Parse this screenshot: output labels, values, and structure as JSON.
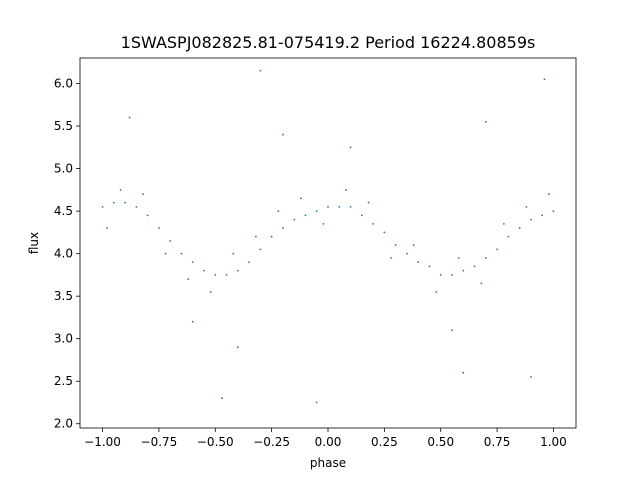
{
  "chart_data": {
    "type": "scatter",
    "title": "1SWASPJ082825.81-075419.2 Period 16224.80859s",
    "xlabel": "phase",
    "ylabel": "flux",
    "xlim": [
      -1.1,
      1.1
    ],
    "ylim": [
      1.95,
      6.3
    ],
    "xticks": [
      -1.0,
      -0.75,
      -0.5,
      -0.25,
      0.0,
      0.25,
      0.5,
      0.75,
      1.0
    ],
    "xtick_labels": [
      "−1.00",
      "−0.75",
      "−0.50",
      "−0.25",
      "0.00",
      "0.25",
      "0.50",
      "0.75",
      "1.00"
    ],
    "yticks": [
      2.0,
      2.5,
      3.0,
      3.5,
      4.0,
      4.5,
      5.0,
      5.5,
      6.0
    ],
    "ytick_labels": [
      "2.0",
      "2.5",
      "3.0",
      "3.5",
      "4.0",
      "4.5",
      "5.0",
      "5.5",
      "6.0"
    ],
    "grid": false,
    "marker_color": "#1f77b4",
    "series": [
      {
        "points": [
          [
            -1.0,
            4.55
          ],
          [
            -0.95,
            4.6
          ],
          [
            -0.9,
            4.6
          ],
          [
            -0.85,
            4.55
          ],
          [
            -0.8,
            4.45
          ],
          [
            -0.75,
            4.3
          ],
          [
            -0.7,
            4.15
          ],
          [
            -0.65,
            4.0
          ],
          [
            -0.6,
            3.9
          ],
          [
            -0.55,
            3.8
          ],
          [
            -0.5,
            3.75
          ],
          [
            -0.45,
            3.75
          ],
          [
            -0.4,
            3.8
          ],
          [
            -0.35,
            3.9
          ],
          [
            -0.3,
            4.05
          ],
          [
            -0.25,
            4.2
          ],
          [
            -0.2,
            4.3
          ],
          [
            -0.15,
            4.4
          ],
          [
            -0.1,
            4.45
          ],
          [
            -0.05,
            4.5
          ],
          [
            0.0,
            4.55
          ],
          [
            0.05,
            4.55
          ],
          [
            0.1,
            4.55
          ],
          [
            0.15,
            4.45
          ],
          [
            0.2,
            4.35
          ],
          [
            0.25,
            4.25
          ],
          [
            0.3,
            4.1
          ],
          [
            0.35,
            4.0
          ],
          [
            0.4,
            3.9
          ],
          [
            0.45,
            3.85
          ],
          [
            0.5,
            3.75
          ],
          [
            0.55,
            3.75
          ],
          [
            0.6,
            3.8
          ],
          [
            0.65,
            3.85
          ],
          [
            0.7,
            3.95
          ],
          [
            0.75,
            4.05
          ],
          [
            0.8,
            4.2
          ],
          [
            0.85,
            4.3
          ],
          [
            0.9,
            4.4
          ],
          [
            0.95,
            4.45
          ],
          [
            1.0,
            4.5
          ],
          [
            -0.98,
            4.3
          ],
          [
            -0.92,
            4.75
          ],
          [
            -0.82,
            4.7
          ],
          [
            -0.72,
            4.0
          ],
          [
            -0.62,
            3.7
          ],
          [
            -0.52,
            3.55
          ],
          [
            -0.42,
            4.0
          ],
          [
            -0.32,
            4.2
          ],
          [
            -0.22,
            4.5
          ],
          [
            -0.12,
            4.65
          ],
          [
            -0.02,
            4.35
          ],
          [
            0.08,
            4.75
          ],
          [
            0.18,
            4.6
          ],
          [
            0.28,
            3.95
          ],
          [
            0.38,
            4.1
          ],
          [
            0.48,
            3.55
          ],
          [
            0.58,
            3.95
          ],
          [
            0.68,
            3.65
          ],
          [
            0.78,
            4.35
          ],
          [
            0.88,
            4.55
          ],
          [
            0.98,
            4.7
          ],
          [
            -0.88,
            5.6
          ],
          [
            -0.6,
            3.2
          ],
          [
            -0.4,
            2.9
          ],
          [
            0.1,
            5.25
          ],
          [
            0.55,
            3.1
          ],
          [
            0.7,
            5.55
          ],
          [
            -0.2,
            5.4
          ],
          [
            0.9,
            2.55
          ],
          [
            -0.3,
            6.15
          ],
          [
            0.96,
            6.05
          ],
          [
            -0.47,
            2.3
          ],
          [
            0.6,
            2.6
          ],
          [
            -0.05,
            2.25
          ]
        ]
      }
    ]
  }
}
